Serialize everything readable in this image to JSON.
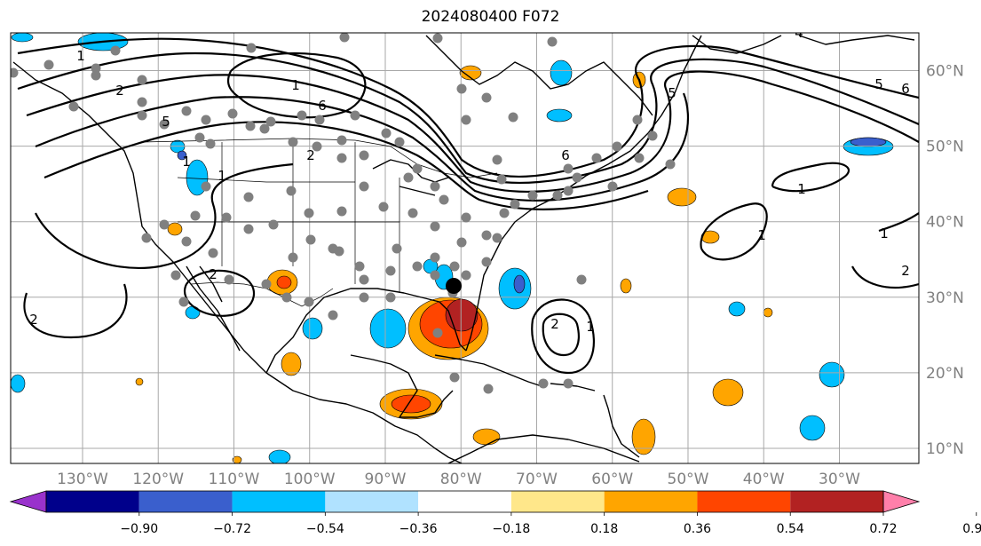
{
  "title": "2024080400 F072",
  "map": {
    "projection": "lat-lon",
    "lon_range": [
      -139.5,
      -19.5
    ],
    "lat_range": [
      8,
      65
    ]
  },
  "axes": {
    "lon_ticks": [
      {
        "lon": -130,
        "label": "130°W"
      },
      {
        "lon": -120,
        "label": "120°W"
      },
      {
        "lon": -110,
        "label": "110°W"
      },
      {
        "lon": -100,
        "label": "100°W"
      },
      {
        "lon": -90,
        "label": "90°W"
      },
      {
        "lon": -80,
        "label": "80°W"
      },
      {
        "lon": -70,
        "label": "70°W"
      },
      {
        "lon": -60,
        "label": "60°W"
      },
      {
        "lon": -50,
        "label": "50°W"
      },
      {
        "lon": -40,
        "label": "40°W"
      },
      {
        "lon": -30,
        "label": "30°W"
      }
    ],
    "lat_ticks": [
      {
        "lat": 60,
        "label": "60°N"
      },
      {
        "lat": 50,
        "label": "50°N"
      },
      {
        "lat": 40,
        "label": "40°N"
      },
      {
        "lat": 30,
        "label": "30°N"
      },
      {
        "lat": 20,
        "label": "20°N"
      },
      {
        "lat": 10,
        "label": "10°N"
      }
    ]
  },
  "colorbar": {
    "labels": [
      "−0.90",
      "−0.72",
      "−0.54",
      "−0.36",
      "−0.18",
      "0.18",
      "0.36",
      "0.54",
      "0.72",
      "0.90"
    ],
    "colors": [
      "#9932CC",
      "#00008B",
      "#3A5FCD",
      "#00BFFF",
      "#B0E2FF",
      "#FFFFFF",
      "#FFE78A",
      "#FFA500",
      "#FF4500",
      "#B22222",
      "#FF7FAA"
    ]
  },
  "contour_labels": [
    "1",
    "2",
    "5",
    "6",
    "2",
    "1",
    "1",
    "6",
    "5",
    "2",
    "2",
    "4",
    "5",
    "6",
    "1",
    "1",
    "1",
    "2",
    "1",
    "2",
    "1"
  ],
  "anomaly_color_key": {
    "neg_weak": "#00BFFF",
    "neg_strong": "#3A5FCD",
    "pos_weak": "#FFA500",
    "pos_mid": "#FF4500",
    "pos_strong": "#B22222"
  },
  "stations_color": "#808080",
  "center_marker_color": "#000000"
}
